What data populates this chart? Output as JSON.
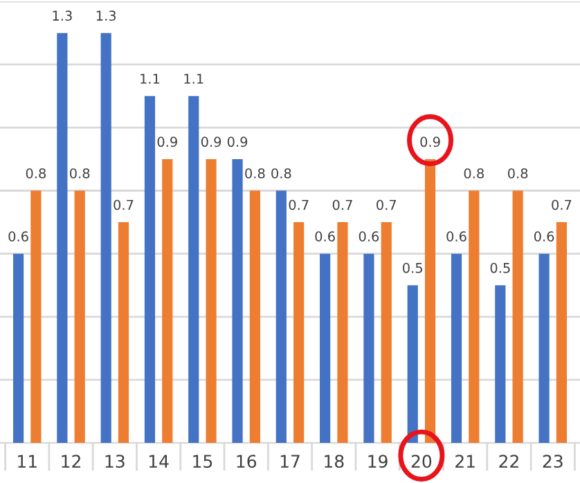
{
  "chart_data": {
    "type": "bar",
    "categories": [
      "11",
      "12",
      "13",
      "14",
      "15",
      "16",
      "17",
      "18",
      "19",
      "20",
      "21",
      "22",
      "23"
    ],
    "series": [
      {
        "color": "#4472c4",
        "values": [
          0.6,
          1.3,
          1.3,
          1.1,
          1.1,
          0.9,
          0.8,
          0.6,
          0.6,
          0.5,
          0.6,
          0.5,
          0.6
        ]
      },
      {
        "color": "#ed7d31",
        "values": [
          0.8,
          0.8,
          0.7,
          0.9,
          0.9,
          0.8,
          0.7,
          0.7,
          0.7,
          0.9,
          0.8,
          0.8,
          0.7
        ]
      }
    ],
    "ylim": [
      0,
      1.4
    ],
    "yticks": [
      {
        "value": 0,
        "label": null
      },
      {
        "value": 0.2,
        "label": null
      },
      {
        "value": 0.4,
        "label": null
      },
      {
        "value": 0.6,
        "label": null
      },
      {
        "value": 0.8,
        "label": null
      },
      {
        "value": 1.0,
        "label": null
      },
      {
        "value": 1.2,
        "label": null
      },
      {
        "value": 1.4,
        "label": null
      }
    ],
    "grid": "y",
    "tick_labels": "x",
    "data_labels": true
  }
}
